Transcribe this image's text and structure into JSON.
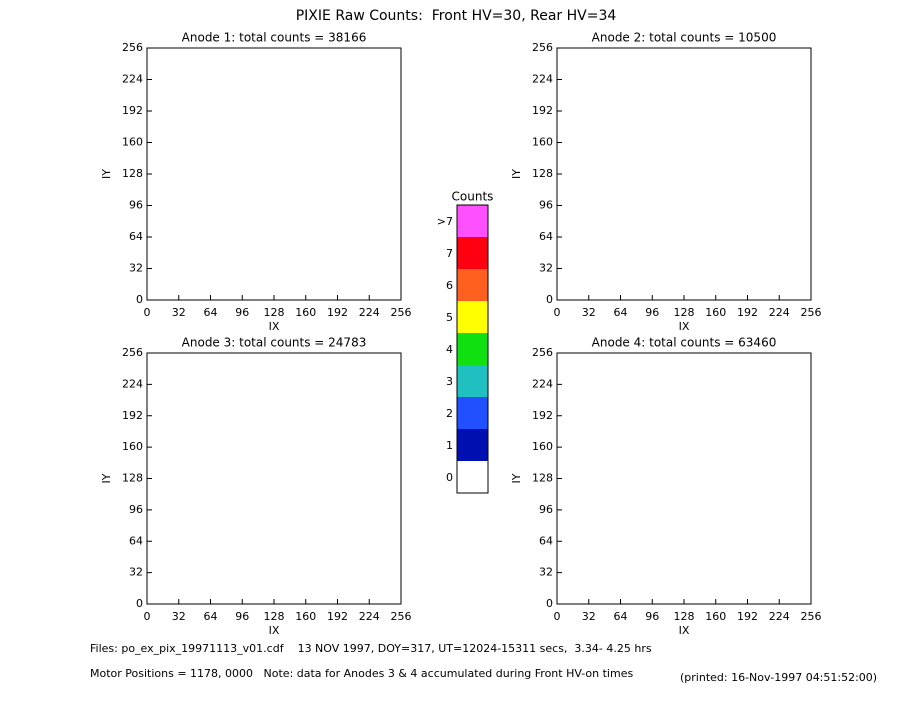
{
  "title": "PIXIE Raw Counts:  Front HV=30, Rear HV=34",
  "chart_data": [
    {
      "type": "heatmap",
      "title": "Anode 1: total counts = 38166",
      "xlabel": "IX",
      "ylabel": "IY",
      "xlim": [
        0,
        256
      ],
      "xticks": [
        0,
        32,
        64,
        96,
        128,
        160,
        192,
        224,
        256
      ],
      "ylim": [
        0,
        256
      ],
      "yticks": [
        0,
        32,
        64,
        96,
        128,
        160,
        192,
        224,
        256
      ]
    },
    {
      "type": "heatmap",
      "title": "Anode 2: total counts = 10500",
      "xlabel": "IX",
      "ylabel": "IY",
      "xlim": [
        0,
        256
      ],
      "xticks": [
        0,
        32,
        64,
        96,
        128,
        160,
        192,
        224,
        256
      ],
      "ylim": [
        0,
        256
      ],
      "yticks": [
        0,
        32,
        64,
        96,
        128,
        160,
        192,
        224,
        256
      ]
    },
    {
      "type": "heatmap",
      "title": "Anode 3: total counts = 24783",
      "xlabel": "IX",
      "ylabel": "IY",
      "xlim": [
        0,
        256
      ],
      "xticks": [
        0,
        32,
        64,
        96,
        128,
        160,
        192,
        224,
        256
      ],
      "ylim": [
        0,
        256
      ],
      "yticks": [
        0,
        32,
        64,
        96,
        128,
        160,
        192,
        224,
        256
      ]
    },
    {
      "type": "heatmap",
      "title": "Anode 4: total counts = 63460",
      "xlabel": "IX",
      "ylabel": "IY",
      "xlim": [
        0,
        256
      ],
      "xticks": [
        0,
        32,
        64,
        96,
        128,
        160,
        192,
        224,
        256
      ],
      "ylim": [
        0,
        256
      ],
      "yticks": [
        0,
        32,
        64,
        96,
        128,
        160,
        192,
        224,
        256
      ]
    }
  ],
  "colorbar": {
    "title": "Counts",
    "ticks": [
      0,
      1,
      2,
      3,
      4,
      5,
      6,
      7,
      {
        "value": 8,
        "label": ">7"
      }
    ],
    "colors": [
      "#ffffff",
      "#0010b0",
      "#2050ff",
      "#20c0c0",
      "#10e010",
      "#ffff00",
      "#ff6020",
      "#ff0010",
      "#ff50ff"
    ]
  },
  "footer": {
    "files": "Files: po_ex_pix_19971113_v01.cdf    13 NOV 1997, DOY=317, UT=12024-15311 secs,  3.34- 4.25 hrs",
    "motor": "Motor Positions = 1178, 0000   Note: data for Anodes 3 & 4 accumulated during Front HV-on times",
    "printed": "(printed: 16-Nov-1997 04:51:52:00)"
  }
}
